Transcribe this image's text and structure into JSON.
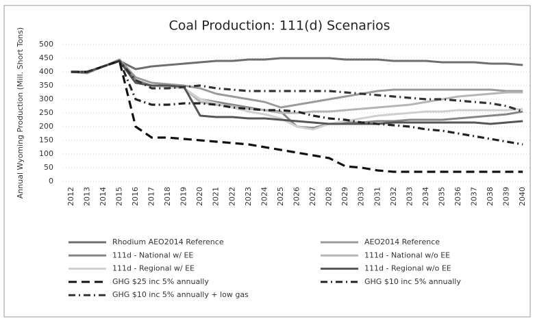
{
  "chart_data": {
    "type": "line",
    "title": "Coal Production: 111(d) Scenarios",
    "y_label": "Annual Wyoming Production (Mill. Short Tons)",
    "categories": [
      "2012",
      "2013",
      "2014",
      "2015",
      "2016",
      "2017",
      "2018",
      "2019",
      "2020",
      "2021",
      "2022",
      "2023",
      "2024",
      "2025",
      "2026",
      "2027",
      "2028",
      "2029",
      "2030",
      "2031",
      "2032",
      "2033",
      "2034",
      "2035",
      "2036",
      "2037",
      "2038",
      "2039",
      "2040"
    ],
    "ylim": [
      0,
      500
    ],
    "yticks": [
      0,
      50,
      100,
      150,
      200,
      250,
      300,
      350,
      400,
      450,
      500
    ],
    "grid": true,
    "legend": "bottom",
    "series": [
      {
        "name": "Rhodium AEO2014 Reference",
        "color": "#6e6e6e",
        "dash": "solid",
        "values": [
          400,
          400,
          420,
          440,
          410,
          420,
          425,
          430,
          435,
          440,
          440,
          445,
          445,
          450,
          450,
          450,
          450,
          445,
          445,
          445,
          440,
          440,
          440,
          435,
          435,
          435,
          430,
          430,
          425
        ]
      },
      {
        "name": "AEO2014 Reference",
        "color": "#9a9a9a",
        "dash": "solid",
        "values": [
          400,
          395,
          420,
          445,
          380,
          360,
          355,
          350,
          340,
          320,
          310,
          300,
          290,
          270,
          280,
          290,
          300,
          310,
          320,
          330,
          335,
          335,
          335,
          335,
          335,
          335,
          335,
          330,
          330
        ]
      },
      {
        "name": "111d - National w/ EE",
        "color": "#858585",
        "dash": "solid",
        "values": [
          400,
          400,
          420,
          440,
          370,
          350,
          345,
          340,
          300,
          290,
          280,
          270,
          260,
          255,
          200,
          195,
          210,
          215,
          215,
          220,
          220,
          225,
          225,
          225,
          230,
          235,
          240,
          245,
          255
        ]
      },
      {
        "name": "111d - National w/o EE",
        "color": "#b5b5b5",
        "dash": "solid",
        "values": [
          400,
          400,
          420,
          440,
          360,
          350,
          345,
          340,
          290,
          280,
          275,
          265,
          260,
          250,
          250,
          255,
          255,
          260,
          265,
          270,
          275,
          280,
          290,
          300,
          310,
          315,
          320,
          325,
          325
        ]
      },
      {
        "name": "111d - Regional w/ EE",
        "color": "#cfcfcf",
        "dash": "solid",
        "values": [
          400,
          400,
          420,
          440,
          360,
          350,
          345,
          340,
          300,
          285,
          270,
          255,
          245,
          230,
          200,
          190,
          210,
          220,
          230,
          240,
          245,
          250,
          255,
          255,
          260,
          260,
          260,
          260,
          265
        ]
      },
      {
        "name": "111d - Regional w/o EE",
        "color": "#555555",
        "dash": "solid",
        "values": [
          400,
          400,
          420,
          440,
          360,
          350,
          350,
          345,
          240,
          235,
          235,
          230,
          230,
          225,
          220,
          215,
          210,
          210,
          210,
          210,
          215,
          215,
          215,
          215,
          215,
          215,
          210,
          215,
          220
        ]
      },
      {
        "name": "GHG $25 inc 5% annually",
        "color": "#111111",
        "dash": "dash",
        "values": [
          400,
          400,
          420,
          440,
          200,
          160,
          160,
          155,
          150,
          145,
          140,
          135,
          125,
          115,
          105,
          95,
          85,
          55,
          50,
          40,
          35,
          35,
          35,
          35,
          35,
          35,
          35,
          35,
          35
        ]
      },
      {
        "name": "GHG $10 inc 5% annually",
        "color": "#222222",
        "dash": "dashdot",
        "values": [
          400,
          400,
          420,
          440,
          300,
          280,
          280,
          285,
          285,
          280,
          270,
          265,
          260,
          260,
          255,
          240,
          230,
          225,
          215,
          210,
          205,
          200,
          190,
          185,
          175,
          165,
          155,
          145,
          135
        ]
      },
      {
        "name": "GHG $10 inc 5% annually + low gas",
        "color": "#333333",
        "dash": "dashdot",
        "values": [
          400,
          400,
          420,
          440,
          370,
          340,
          340,
          345,
          350,
          340,
          335,
          330,
          330,
          330,
          330,
          330,
          330,
          325,
          320,
          315,
          310,
          305,
          300,
          300,
          295,
          290,
          285,
          275,
          255
        ]
      }
    ]
  }
}
